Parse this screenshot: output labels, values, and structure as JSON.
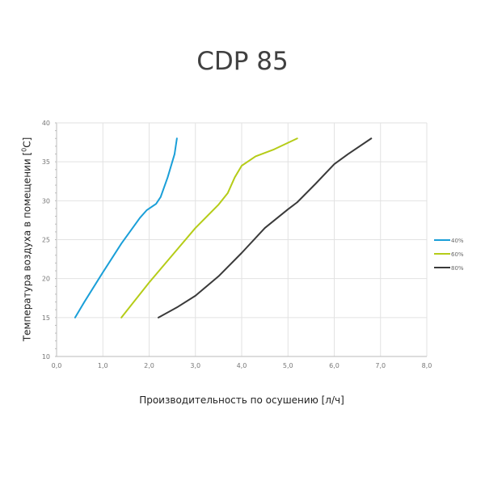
{
  "chart_data": {
    "type": "line",
    "title": "CDP 85",
    "xlabel": "Производительность по осушению [л/ч]",
    "ylabel": "Температура воздуха в помещении [",
    "ylabel_sup": "0",
    "ylabel_unit": "C]",
    "xlim": [
      0,
      8
    ],
    "ylim": [
      10,
      40
    ],
    "xticks": [
      "0,0",
      "1,0",
      "2,0",
      "3,0",
      "4,0",
      "5,0",
      "6,0",
      "7,0",
      "8,0"
    ],
    "yticks": [
      "10",
      "15",
      "20",
      "25",
      "30",
      "35",
      "40"
    ],
    "grid": true,
    "legend_position": "right",
    "series": [
      {
        "name": "40%",
        "color": "#1a9fd8",
        "x": [
          0.4,
          0.6,
          1.0,
          1.4,
          1.8,
          1.95,
          2.15,
          2.25,
          2.4,
          2.5,
          2.55,
          2.6
        ],
        "y": [
          15,
          17,
          20.8,
          24.5,
          27.8,
          28.8,
          29.6,
          30.5,
          33,
          35,
          36,
          38
        ]
      },
      {
        "name": "60%",
        "color": "#b5cc18",
        "x": [
          1.4,
          2.0,
          2.5,
          3.0,
          3.5,
          3.7,
          3.85,
          4.0,
          4.3,
          4.7,
          5.2
        ],
        "y": [
          15,
          19.5,
          23,
          26.5,
          29.5,
          31,
          33,
          34.5,
          35.7,
          36.6,
          38
        ]
      },
      {
        "name": "80%",
        "color": "#3a3a3a",
        "x": [
          2.2,
          2.6,
          3.0,
          3.5,
          4.0,
          4.5,
          5.0,
          5.2,
          5.6,
          6.0,
          6.3,
          6.8
        ],
        "y": [
          15,
          16.3,
          17.8,
          20.3,
          23.3,
          26.5,
          28.9,
          29.8,
          32.2,
          34.7,
          36,
          38
        ]
      }
    ]
  }
}
